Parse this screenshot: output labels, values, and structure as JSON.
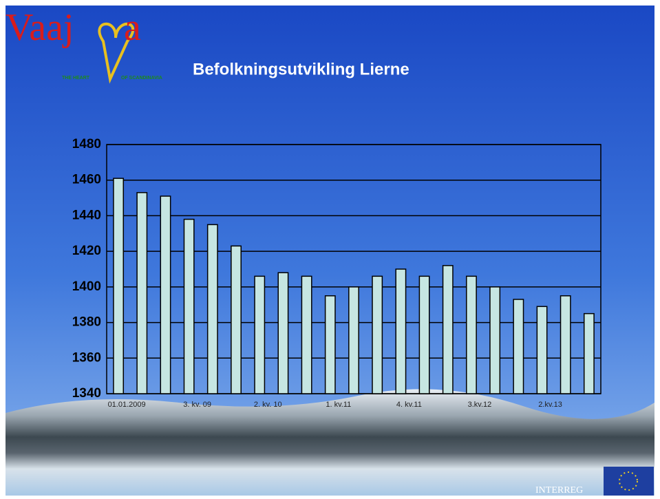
{
  "logo": {
    "left": "Vaaj",
    "right": "a",
    "tagline_left": "THE HEART",
    "tagline_right": "OF SCANDINAVIA"
  },
  "footer": {
    "partner": "INTERREG"
  },
  "chart_data": {
    "type": "bar",
    "title": "Befolkningsutvikling Lierne",
    "categories": [
      "01.01.2009",
      null,
      null,
      "3. kv. 09",
      null,
      null,
      "2. kv. 10",
      null,
      null,
      "1. kv.11",
      null,
      null,
      "4. kv.11",
      null,
      null,
      "3.kv.12",
      null,
      null,
      "2.kv.13",
      null,
      null
    ],
    "values": [
      1461,
      1453,
      1451,
      1438,
      1435,
      1423,
      1406,
      1408,
      1406,
      1395,
      1400,
      1406,
      1410,
      1406,
      1412,
      1406,
      1400,
      1393,
      1389,
      1395,
      1385
    ],
    "color": "#c6e6e2",
    "ylim": [
      1340,
      1480
    ],
    "yticks": [
      1340,
      1360,
      1380,
      1400,
      1420,
      1440,
      1460,
      1480
    ],
    "grid": true
  }
}
